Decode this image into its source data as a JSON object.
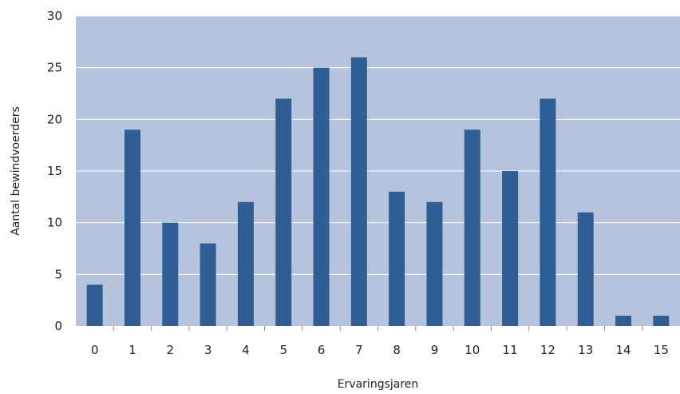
{
  "chart_data": {
    "type": "bar",
    "title": "",
    "xlabel": "Ervaringsjaren",
    "ylabel": "Aantal bewindvoerders",
    "categories": [
      "0",
      "1",
      "2",
      "3",
      "4",
      "5",
      "6",
      "7",
      "8",
      "9",
      "10",
      "11",
      "12",
      "13",
      "14",
      "15"
    ],
    "values": [
      4,
      19,
      10,
      8,
      12,
      22,
      25,
      26,
      13,
      12,
      19,
      15,
      22,
      11,
      1,
      1
    ],
    "ylim": [
      0,
      30
    ],
    "yticks": [
      "0",
      "5",
      "10",
      "15",
      "20",
      "25",
      "30"
    ],
    "grid": true,
    "legend": "none",
    "colors": {
      "bar": "#2e5e93",
      "plot_background": "#b6c3dd",
      "gridline": "#ffffff",
      "tick_mark": "#8c8c8c"
    }
  }
}
